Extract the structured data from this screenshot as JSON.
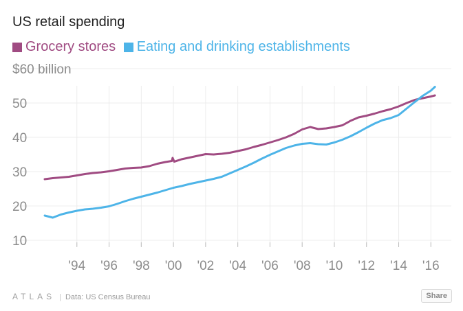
{
  "chart_data": {
    "type": "line",
    "title": "US retail spending",
    "y_unit_label": "$60 billion",
    "ylim": [
      10,
      60
    ],
    "y_ticks": [
      10,
      20,
      30,
      40,
      50,
      60
    ],
    "y_tick_labels": [
      "10",
      "20",
      "30",
      "40",
      "50",
      "$60 billion"
    ],
    "xlim": [
      1992.0,
      2016.5
    ],
    "x_ticks": [
      1994,
      1996,
      1998,
      2000,
      2002,
      2004,
      2006,
      2008,
      2010,
      2012,
      2014,
      2016
    ],
    "x_tick_labels": [
      "'94",
      "'96",
      "'98",
      "'00",
      "'02",
      "'04",
      "'06",
      "'08",
      "'10",
      "'12",
      "'14",
      "'16"
    ],
    "grid": true,
    "legend_position": "top",
    "series": [
      {
        "name": "Grocery stores",
        "color": "#a04b82",
        "x": [
          1992.0,
          1992.5,
          1993.0,
          1993.5,
          1994.0,
          1994.5,
          1995.0,
          1995.5,
          1996.0,
          1996.5,
          1997.0,
          1997.5,
          1998.0,
          1998.5,
          1999.0,
          1999.5,
          1999.9,
          1999.95,
          2000.05,
          2000.5,
          2001.0,
          2001.5,
          2002.0,
          2002.5,
          2003.0,
          2003.5,
          2004.0,
          2004.5,
          2005.0,
          2005.5,
          2006.0,
          2006.5,
          2007.0,
          2007.5,
          2008.0,
          2008.5,
          2009.0,
          2009.5,
          2010.0,
          2010.5,
          2011.0,
          2011.5,
          2012.0,
          2012.5,
          2013.0,
          2013.5,
          2014.0,
          2014.5,
          2015.0,
          2015.5,
          2016.0,
          2016.25
        ],
        "y": [
          27.8,
          28.1,
          28.3,
          28.5,
          28.9,
          29.3,
          29.6,
          29.8,
          30.1,
          30.5,
          30.9,
          31.1,
          31.2,
          31.6,
          32.3,
          32.8,
          33.1,
          34.0,
          32.9,
          33.6,
          34.1,
          34.6,
          35.1,
          35.0,
          35.2,
          35.5,
          36.0,
          36.5,
          37.2,
          37.8,
          38.5,
          39.2,
          40.0,
          41.0,
          42.3,
          43.0,
          42.4,
          42.6,
          43.0,
          43.5,
          44.8,
          45.8,
          46.3,
          46.9,
          47.6,
          48.2,
          49.0,
          50.0,
          50.9,
          51.4,
          51.9,
          52.2
        ]
      },
      {
        "name": "Eating and drinking establishments",
        "color": "#4db4e8",
        "x": [
          1992.0,
          1992.5,
          1993.0,
          1993.5,
          1994.0,
          1994.5,
          1995.0,
          1995.5,
          1996.0,
          1996.5,
          1997.0,
          1997.5,
          1998.0,
          1998.5,
          1999.0,
          1999.5,
          2000.0,
          2000.5,
          2001.0,
          2001.5,
          2002.0,
          2002.5,
          2003.0,
          2003.5,
          2004.0,
          2004.5,
          2005.0,
          2005.5,
          2006.0,
          2006.5,
          2007.0,
          2007.5,
          2008.0,
          2008.5,
          2009.0,
          2009.5,
          2010.0,
          2010.5,
          2011.0,
          2011.5,
          2012.0,
          2012.5,
          2013.0,
          2013.5,
          2014.0,
          2014.5,
          2015.0,
          2015.5,
          2016.0,
          2016.25
        ],
        "y": [
          17.2,
          16.6,
          17.5,
          18.1,
          18.6,
          19.0,
          19.2,
          19.5,
          19.9,
          20.6,
          21.4,
          22.1,
          22.7,
          23.3,
          23.9,
          24.6,
          25.3,
          25.8,
          26.4,
          26.9,
          27.4,
          27.9,
          28.5,
          29.5,
          30.5,
          31.5,
          32.6,
          33.8,
          34.9,
          35.9,
          36.9,
          37.6,
          38.1,
          38.3,
          38.0,
          37.9,
          38.5,
          39.3,
          40.3,
          41.5,
          42.8,
          44.0,
          45.0,
          45.6,
          46.5,
          48.4,
          50.3,
          52.1,
          53.6,
          54.7
        ]
      }
    ]
  },
  "footer": {
    "brand": "ATLAS",
    "source": "Data: US Census Bureau",
    "share_label": "Share"
  }
}
